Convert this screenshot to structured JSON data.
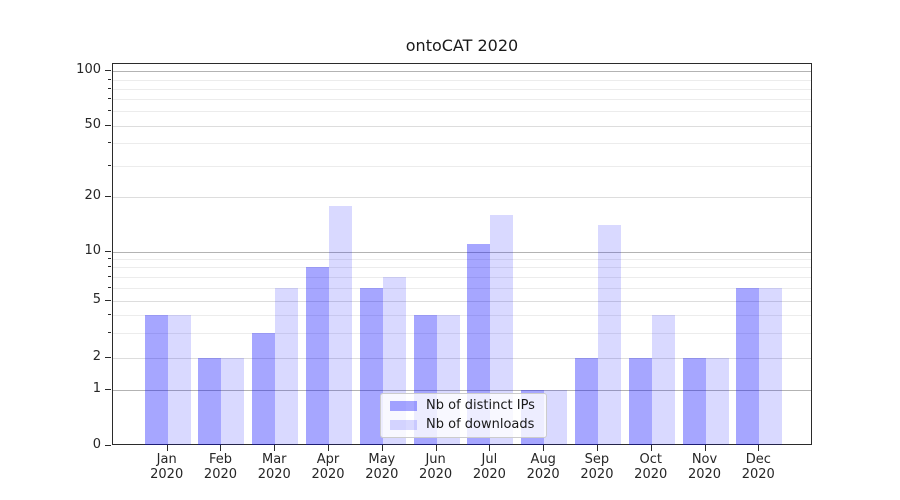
{
  "title": "ontoCAT 2020",
  "legend": {
    "items": [
      {
        "label": "Nb of distinct IPs",
        "color": "rgba(0,0,255,0.35)"
      },
      {
        "label": "Nb of downloads",
        "color": "rgba(0,0,255,0.15)"
      }
    ]
  },
  "axes": {
    "y_tick_labels": [
      "0",
      "1",
      "2",
      "5",
      "10",
      "20",
      "50",
      "100"
    ],
    "x_tick_labels": [
      "Jan\n2020",
      "Feb\n2020",
      "Mar\n2020",
      "Apr\n2020",
      "May\n2020",
      "Jun\n2020",
      "Jul\n2020",
      "Aug\n2020",
      "Sep\n2020",
      "Oct\n2020",
      "Nov\n2020",
      "Dec\n2020"
    ]
  },
  "chart_data": {
    "type": "bar",
    "title": "ontoCAT 2020",
    "categories": [
      "Jan 2020",
      "Feb 2020",
      "Mar 2020",
      "Apr 2020",
      "May 2020",
      "Jun 2020",
      "Jul 2020",
      "Aug 2020",
      "Sep 2020",
      "Oct 2020",
      "Nov 2020",
      "Dec 2020"
    ],
    "series": [
      {
        "name": "Nb of distinct IPs",
        "color": "rgba(0,0,255,0.35)",
        "values": [
          4,
          2,
          3,
          8,
          6,
          4,
          11,
          1,
          2,
          2,
          2,
          6
        ]
      },
      {
        "name": "Nb of downloads",
        "color": "rgba(0,0,255,0.15)",
        "values": [
          4,
          2,
          6,
          18,
          7,
          4,
          16,
          1,
          14,
          4,
          2,
          6
        ]
      }
    ],
    "xlabel": "",
    "ylabel": "",
    "yscale": "log-like",
    "y_ticks": [
      0,
      1,
      2,
      5,
      10,
      20,
      50,
      100
    ],
    "y_minor_ticks": [
      3,
      4,
      6,
      7,
      8,
      9,
      30,
      40,
      60,
      70,
      80,
      90
    ],
    "ylim": [
      0,
      110
    ],
    "grid": "horizontal",
    "legend_position": "lower center",
    "colors": {
      "grid_major": "#b3b3b3",
      "grid_minor": "#ececec",
      "spine": "#2b2b2b",
      "background": "#ffffff"
    }
  }
}
